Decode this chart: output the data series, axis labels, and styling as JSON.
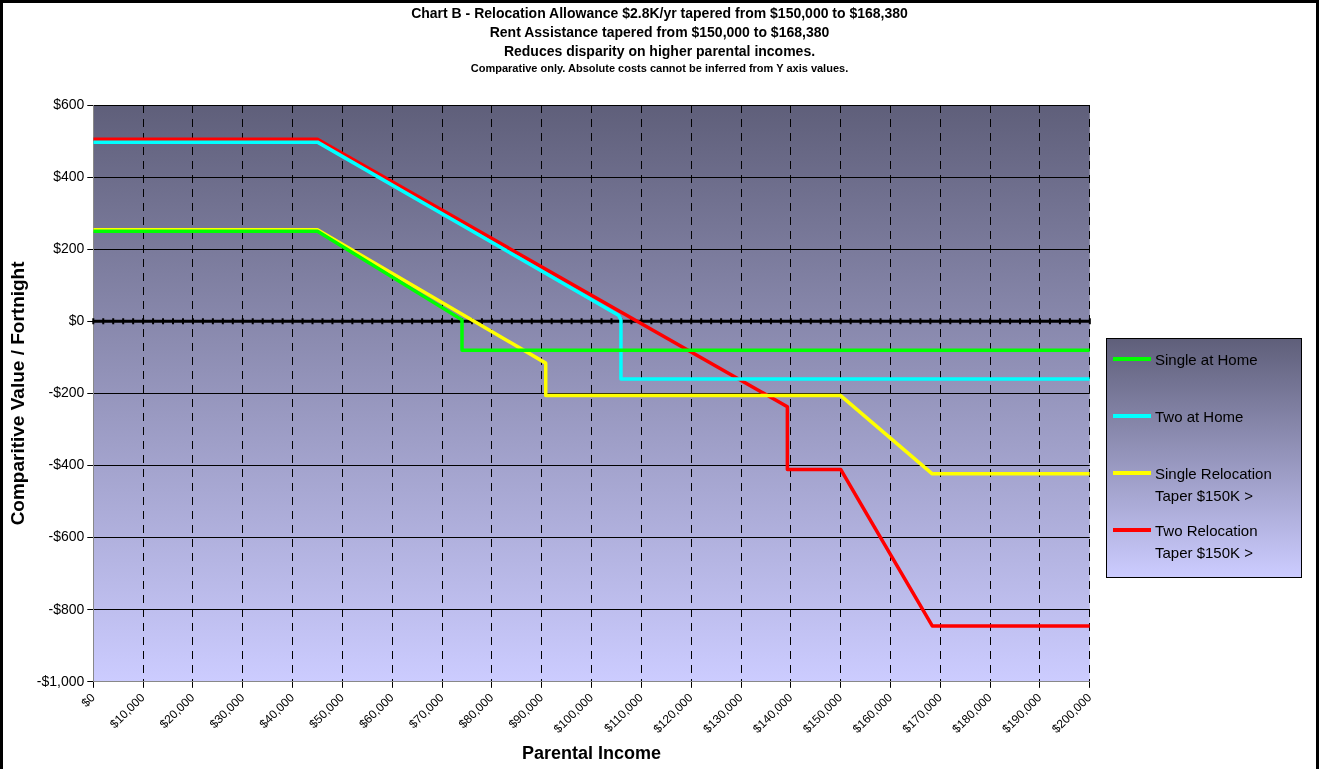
{
  "chart_data": {
    "type": "line",
    "title": "Chart B - Relocation Allowance $2.8K/yr tapered from $150,000 to $168,380",
    "subtitle": "Rent Assistance tapered from $150,000 to $168,380\nReduces disparity on higher parental incomes.",
    "annotations": [
      "Comparative only.  Absolute costs cannot be inferred from Y axis values."
    ],
    "xlabel": "Parental Income",
    "ylabel": "Comparitive Value / Fortnight",
    "xlim": [
      0,
      200000
    ],
    "xticks": [
      {
        "value": 0,
        "label": "$0"
      },
      {
        "value": 10000,
        "label": "$10,000"
      },
      {
        "value": 20000,
        "label": "$20,000"
      },
      {
        "value": 30000,
        "label": "$30,000"
      },
      {
        "value": 40000,
        "label": "$40,000"
      },
      {
        "value": 50000,
        "label": "$50,000"
      },
      {
        "value": 60000,
        "label": "$60,000"
      },
      {
        "value": 70000,
        "label": "$70,000"
      },
      {
        "value": 80000,
        "label": "$80,000"
      },
      {
        "value": 90000,
        "label": "$90,000"
      },
      {
        "value": 100000,
        "label": "$100,000"
      },
      {
        "value": 110000,
        "label": "$110,000"
      },
      {
        "value": 120000,
        "label": "$120,000"
      },
      {
        "value": 130000,
        "label": "$130,000"
      },
      {
        "value": 140000,
        "label": "$140,000"
      },
      {
        "value": 150000,
        "label": "$150,000"
      },
      {
        "value": 160000,
        "label": "$160,000"
      },
      {
        "value": 170000,
        "label": "$170,000"
      },
      {
        "value": 180000,
        "label": "$180,000"
      },
      {
        "value": 190000,
        "label": "$190,000"
      },
      {
        "value": 200000,
        "label": "$200,000"
      }
    ],
    "ylim": [
      -1000,
      600
    ],
    "yticks": [
      {
        "value": -1000,
        "label": "-$1,000"
      },
      {
        "value": -800,
        "label": "-$800"
      },
      {
        "value": -600,
        "label": "-$600"
      },
      {
        "value": -400,
        "label": "-$400"
      },
      {
        "value": -200,
        "label": "-$200"
      },
      {
        "value": 0,
        "label": "$0"
      },
      {
        "value": 200,
        "label": "$200"
      },
      {
        "value": 400,
        "label": "$400"
      },
      {
        "value": 600,
        "label": "$600"
      }
    ],
    "grid": true,
    "legend": "right",
    "marker": "none",
    "line_style": "solid",
    "ref_lines": [
      {
        "axis": "y",
        "value": 0,
        "color": "#000000"
      }
    ],
    "series": [
      {
        "name": "Single at Home",
        "color": "#00ff00",
        "x": [
          0,
          45000,
          74000,
          74000,
          200000
        ],
        "values": [
          250,
          250,
          4,
          -80,
          -80
        ]
      },
      {
        "name": "Two at Home",
        "color": "#00ffff",
        "x": [
          0,
          45000,
          105400,
          105900,
          105900,
          200000
        ],
        "values": [
          497,
          497,
          17,
          5,
          -160,
          -160
        ]
      },
      {
        "name": "Single Relocation\nTaper $150K >",
        "color": "#ffff00",
        "x": [
          0,
          45000,
          90800,
          90800,
          150000,
          168380,
          200000
        ],
        "values": [
          254,
          254,
          -116,
          -206,
          -206,
          -423,
          -423
        ]
      },
      {
        "name": "Two Relocation\nTaper $150K >",
        "color": "#ff0000",
        "x": [
          0,
          45000,
          139300,
          139300,
          150000,
          168380,
          200000
        ],
        "values": [
          505,
          505,
          -237,
          -411,
          -411,
          -845,
          -845
        ]
      }
    ]
  }
}
